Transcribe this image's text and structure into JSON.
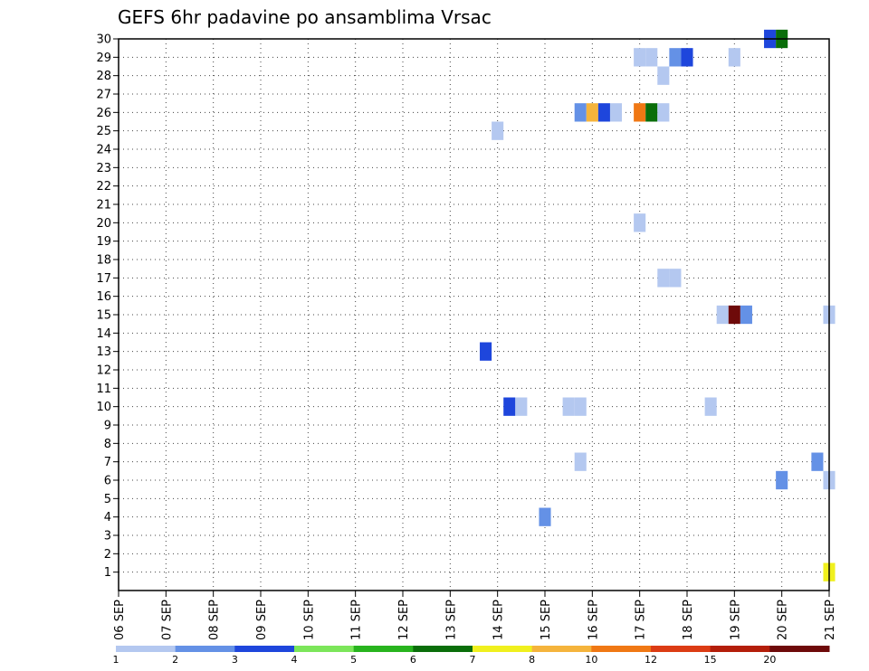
{
  "chart_data": {
    "type": "heatmap",
    "title": "GEFS 6hr padavine po ansamblima Vrsac",
    "xlabel": "",
    "ylabel": "",
    "x_ticks": [
      "06 SEP",
      "07 SEP",
      "08 SEP",
      "09 SEP",
      "10 SEP",
      "11 SEP",
      "12 SEP",
      "13 SEP",
      "14 SEP",
      "15 SEP",
      "16 SEP",
      "17 SEP",
      "18 SEP",
      "19 SEP",
      "20 SEP",
      "21 SEP"
    ],
    "y_ticks": [
      "1",
      "2",
      "3",
      "4",
      "5",
      "6",
      "7",
      "8",
      "9",
      "10",
      "11",
      "12",
      "13",
      "14",
      "15",
      "16",
      "17",
      "18",
      "19",
      "20",
      "21",
      "22",
      "23",
      "24",
      "25",
      "26",
      "27",
      "28",
      "29",
      "30"
    ],
    "ylim": [
      0,
      30
    ],
    "x_steps_per_day": 4,
    "grid": true,
    "colorbar": {
      "labels": [
        "1",
        "2",
        "3",
        "4",
        "5",
        "6",
        "7",
        "8",
        "10",
        "12",
        "15",
        "20"
      ],
      "colors": [
        "#b4c8f0",
        "#6491e6",
        "#1e46dc",
        "#7ce65a",
        "#28b41e",
        "#0a6e0a",
        "#f0f01e",
        "#f5b43c",
        "#f07814",
        "#dc3c14",
        "#b41e0a",
        "#6e0a0a"
      ]
    },
    "cells": [
      {
        "step": 32,
        "member": 25,
        "color": "#b4c8f0"
      },
      {
        "step": 39,
        "member": 26,
        "color": "#6491e6"
      },
      {
        "step": 40,
        "member": 26,
        "color": "#f5b43c"
      },
      {
        "step": 41,
        "member": 26,
        "color": "#1e46dc"
      },
      {
        "step": 42,
        "member": 26,
        "color": "#b4c8f0"
      },
      {
        "step": 44,
        "member": 26,
        "color": "#f07814"
      },
      {
        "step": 45,
        "member": 26,
        "color": "#0a6e0a"
      },
      {
        "step": 46,
        "member": 26,
        "color": "#b4c8f0"
      },
      {
        "step": 44,
        "member": 29,
        "color": "#b4c8f0"
      },
      {
        "step": 45,
        "member": 29,
        "color": "#b4c8f0"
      },
      {
        "step": 47,
        "member": 29,
        "color": "#6491e6"
      },
      {
        "step": 48,
        "member": 29,
        "color": "#1e46dc"
      },
      {
        "step": 52,
        "member": 29,
        "color": "#b4c8f0"
      },
      {
        "step": 46,
        "member": 28,
        "color": "#b4c8f0"
      },
      {
        "step": 55,
        "member": 30,
        "color": "#1e46dc"
      },
      {
        "step": 56,
        "member": 30,
        "color": "#0a6e0a"
      },
      {
        "step": 44,
        "member": 20,
        "color": "#b4c8f0"
      },
      {
        "step": 46,
        "member": 17,
        "color": "#b4c8f0"
      },
      {
        "step": 47,
        "member": 17,
        "color": "#b4c8f0"
      },
      {
        "step": 51,
        "member": 15,
        "color": "#b4c8f0"
      },
      {
        "step": 52,
        "member": 15,
        "color": "#6e0a0a"
      },
      {
        "step": 53,
        "member": 15,
        "color": "#6491e6"
      },
      {
        "step": 60,
        "member": 15,
        "color": "#b4c8f0"
      },
      {
        "step": 31,
        "member": 13,
        "color": "#1e46dc"
      },
      {
        "step": 33,
        "member": 10,
        "color": "#1e46dc"
      },
      {
        "step": 34,
        "member": 10,
        "color": "#b4c8f0"
      },
      {
        "step": 38,
        "member": 10,
        "color": "#b4c8f0"
      },
      {
        "step": 39,
        "member": 10,
        "color": "#b4c8f0"
      },
      {
        "step": 50,
        "member": 10,
        "color": "#b4c8f0"
      },
      {
        "step": 39,
        "member": 7,
        "color": "#b4c8f0"
      },
      {
        "step": 59,
        "member": 7,
        "color": "#6491e6"
      },
      {
        "step": 56,
        "member": 6,
        "color": "#6491e6"
      },
      {
        "step": 60,
        "member": 6,
        "color": "#b4c8f0"
      },
      {
        "step": 36,
        "member": 4,
        "color": "#6491e6"
      },
      {
        "step": 60,
        "member": 1,
        "color": "#f0f01e"
      }
    ]
  }
}
